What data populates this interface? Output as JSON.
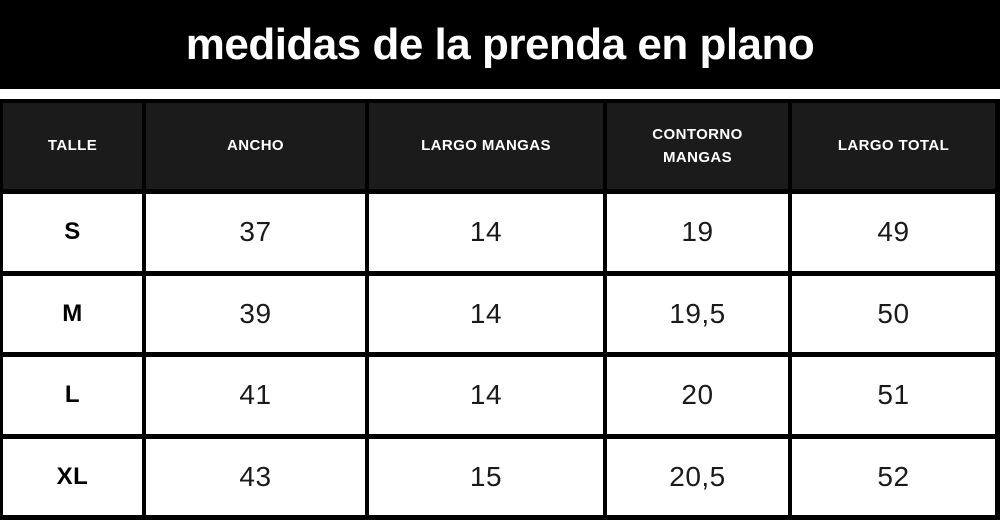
{
  "banner": {
    "title": "medidas de la prenda en plano"
  },
  "chart_data": {
    "type": "table",
    "title": "medidas de la prenda en plano",
    "columns": [
      "TALLE",
      "ANCHO",
      "LARGO MANGAS",
      "CONTORNO MANGAS",
      "LARGO TOTAL"
    ],
    "rows": [
      [
        "S",
        "37",
        "14",
        "19",
        "49"
      ],
      [
        "M",
        "39",
        "14",
        "19,5",
        "50"
      ],
      [
        "L",
        "41",
        "14",
        "20",
        "51"
      ],
      [
        "XL",
        "43",
        "15",
        "20,5",
        "52"
      ]
    ]
  },
  "colors": {
    "banner_bg": "#000000",
    "banner_text": "#ffffff",
    "header_cell_bg": "#1b1b1b",
    "header_cell_text": "#ffffff",
    "data_cell_bg": "#ffffff",
    "data_cell_text": "#1a1a1a",
    "grid_border": "#000000"
  }
}
